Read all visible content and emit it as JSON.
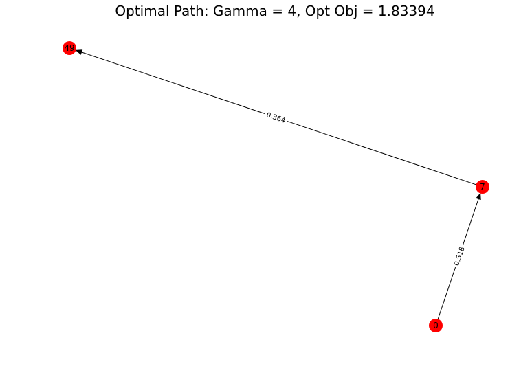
{
  "title": "Optimal Path: Gamma = 4, Opt Obj = 1.83394",
  "colors": {
    "node_fill": "#ff0000",
    "edge": "#000000",
    "label_bg": "#ffffff"
  },
  "graph": {
    "nodes": [
      {
        "id": "49",
        "label": "49"
      },
      {
        "id": "7",
        "label": "7"
      },
      {
        "id": "0",
        "label": "0"
      }
    ],
    "edges": [
      {
        "from": "0",
        "to": "7",
        "label": "0.518"
      },
      {
        "from": "7",
        "to": "49",
        "label": "0.364"
      }
    ]
  }
}
